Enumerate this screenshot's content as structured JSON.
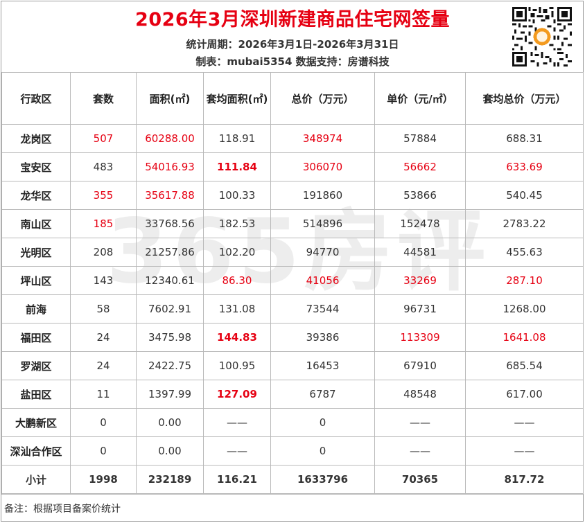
{
  "header": {
    "title": "2026年3月深圳新建商品住宅网签量",
    "period": "统计周期：2026年3月1日-2026年3月31日",
    "credit": "制表：mubai5354  数据支持：房谱科技"
  },
  "colors": {
    "accent_red": "#e60012",
    "border": "#b9b9b9",
    "text": "#333333"
  },
  "columns": [
    "行政区",
    "套数",
    "面积(㎡)",
    "套均面积(㎡)",
    "总价（万元）",
    "单价（元/㎡）",
    "套均总价（万元）"
  ],
  "rows": [
    {
      "district": "龙岗区",
      "units": "507",
      "area": "60288.00",
      "avg_area": "118.91",
      "total_price": "348974",
      "unit_price": "57884",
      "avg_total": "688.31"
    },
    {
      "district": "宝安区",
      "units": "483",
      "area": "54016.93",
      "avg_area": "111.84",
      "total_price": "306070",
      "unit_price": "56662",
      "avg_total": "633.69"
    },
    {
      "district": "龙华区",
      "units": "355",
      "area": "35617.88",
      "avg_area": "100.33",
      "total_price": "191860",
      "unit_price": "53866",
      "avg_total": "540.45"
    },
    {
      "district": "南山区",
      "units": "185",
      "area": "33768.56",
      "avg_area": "182.53",
      "total_price": "514896",
      "unit_price": "152478",
      "avg_total": "2783.22"
    },
    {
      "district": "光明区",
      "units": "208",
      "area": "21257.86",
      "avg_area": "102.20",
      "total_price": "94770",
      "unit_price": "44581",
      "avg_total": "455.63"
    },
    {
      "district": "坪山区",
      "units": "143",
      "area": "12340.61",
      "avg_area": "86.30",
      "total_price": "41056",
      "unit_price": "33269",
      "avg_total": "287.10"
    },
    {
      "district": "前海",
      "units": "58",
      "area": "7602.91",
      "avg_area": "131.08",
      "total_price": "73544",
      "unit_price": "96731",
      "avg_total": "1268.00"
    },
    {
      "district": "福田区",
      "units": "24",
      "area": "3475.98",
      "avg_area": "144.83",
      "total_price": "39386",
      "unit_price": "113309",
      "avg_total": "1641.08"
    },
    {
      "district": "罗湖区",
      "units": "24",
      "area": "2422.75",
      "avg_area": "100.95",
      "total_price": "16453",
      "unit_price": "67910",
      "avg_total": "685.54"
    },
    {
      "district": "盐田区",
      "units": "11",
      "area": "1397.99",
      "avg_area": "127.09",
      "total_price": "6787",
      "unit_price": "48548",
      "avg_total": "617.00"
    },
    {
      "district": "大鹏新区",
      "units": "0",
      "area": "0.00",
      "avg_area": "——",
      "total_price": "0",
      "unit_price": "——",
      "avg_total": "——"
    },
    {
      "district": "深汕合作区",
      "units": "0",
      "area": "0.00",
      "avg_area": "——",
      "total_price": "0",
      "unit_price": "——",
      "avg_total": "——"
    }
  ],
  "total": {
    "label": "小计",
    "units": "1998",
    "area": "232189",
    "avg_area": "116.21",
    "total_price": "1633796",
    "unit_price": "70365",
    "avg_total": "817.72"
  },
  "footnote": "备注：根据项目备案价统计",
  "watermark_text": "365房评"
}
